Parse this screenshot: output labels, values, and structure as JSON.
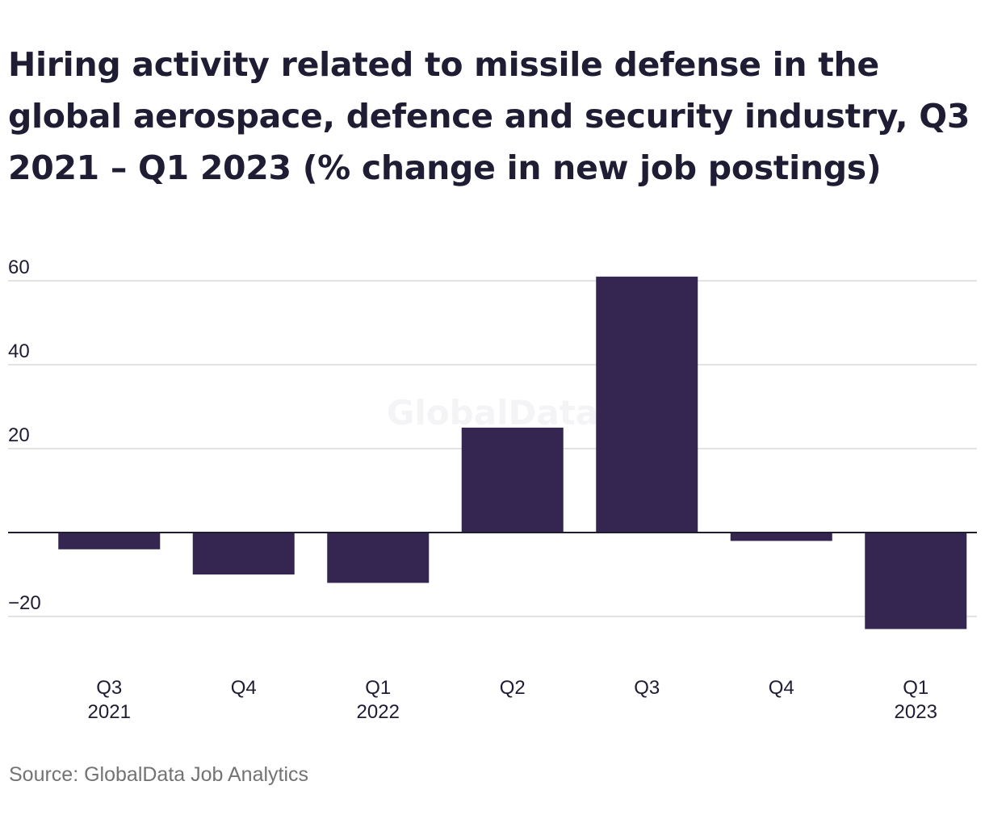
{
  "chart_data": {
    "type": "bar",
    "title": "Hiring activity related to missile defense in the global aerospace, defence and security industry, Q3 2021 – Q1 2023 (% change in new job postings)",
    "categories": [
      [
        "Q3",
        "2021"
      ],
      [
        "Q4"
      ],
      [
        "Q1",
        "2022"
      ],
      [
        "Q2"
      ],
      [
        "Q3"
      ],
      [
        "Q4"
      ],
      [
        "Q1",
        "2023"
      ]
    ],
    "values": [
      -4,
      -10,
      -12,
      25,
      61,
      -2,
      -23
    ],
    "y_ticks": [
      60,
      40,
      20,
      -20
    ],
    "y_tick_labels": [
      "60",
      "40",
      "20",
      "−20"
    ],
    "ylim": [
      -28,
      64
    ],
    "xlabel": "",
    "ylabel": "",
    "grid": true,
    "bar_color": "#352651",
    "grid_color": "#d9d9d9",
    "zero_line_color": "#1f1d33"
  },
  "watermark": "GlobalData",
  "source": "Source: GlobalData Job Analytics"
}
